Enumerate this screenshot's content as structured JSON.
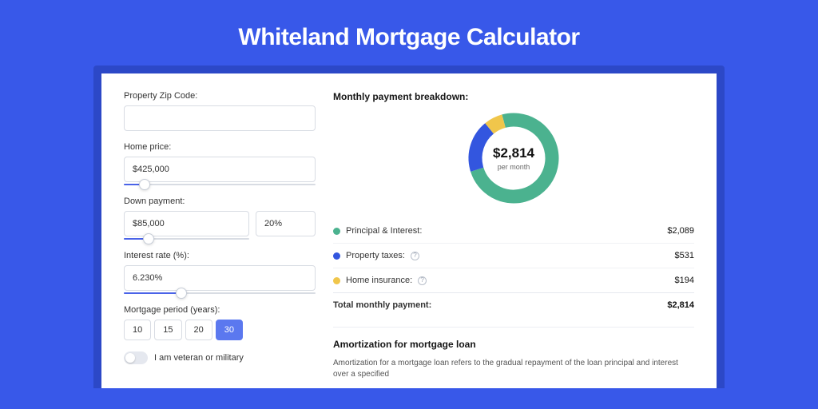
{
  "page": {
    "background_color": "#3858e9",
    "shadow_color": "#2c48c7",
    "card_color": "#ffffff"
  },
  "title": "Whiteland Mortgage Calculator",
  "form": {
    "zip": {
      "label": "Property Zip Code:",
      "value": ""
    },
    "home_price": {
      "label": "Home price:",
      "value": "$425,000",
      "slider_pct": 11
    },
    "down_payment": {
      "label": "Down payment:",
      "value": "$85,000",
      "pct_value": "20%",
      "slider_pct": 20
    },
    "interest_rate": {
      "label": "Interest rate (%):",
      "value": "6.230%",
      "slider_pct": 30
    },
    "period": {
      "label": "Mortgage period (years):",
      "options": [
        "10",
        "15",
        "20",
        "30"
      ],
      "active_index": 3,
      "active_bg": "#5b78ef"
    },
    "veteran": {
      "label": "I am veteran or military",
      "checked": false
    }
  },
  "breakdown": {
    "title": "Monthly payment breakdown:",
    "total_amount": "$2,814",
    "per_month_label": "per month",
    "chart": {
      "type": "donut",
      "stroke_width": 17,
      "radius": 48,
      "slices": [
        {
          "label": "Principal & Interest:",
          "value": "$2,089",
          "pct": 74.2,
          "color": "#4bb28f"
        },
        {
          "label": "Property taxes:",
          "value": "$531",
          "pct": 18.9,
          "color": "#3356df"
        },
        {
          "label": "Home insurance:",
          "value": "$194",
          "pct": 6.9,
          "color": "#f0c64b"
        }
      ]
    },
    "items": [
      {
        "dot": "#4bb28f",
        "label": "Principal & Interest:",
        "info": false,
        "value": "$2,089"
      },
      {
        "dot": "#3356df",
        "label": "Property taxes:",
        "info": true,
        "value": "$531"
      },
      {
        "dot": "#f0c64b",
        "label": "Home insurance:",
        "info": true,
        "value": "$194"
      }
    ],
    "total_row": {
      "label": "Total monthly payment:",
      "value": "$2,814"
    }
  },
  "amortization": {
    "title": "Amortization for mortgage loan",
    "text": "Amortization for a mortgage loan refers to the gradual repayment of the loan principal and interest over a specified"
  }
}
